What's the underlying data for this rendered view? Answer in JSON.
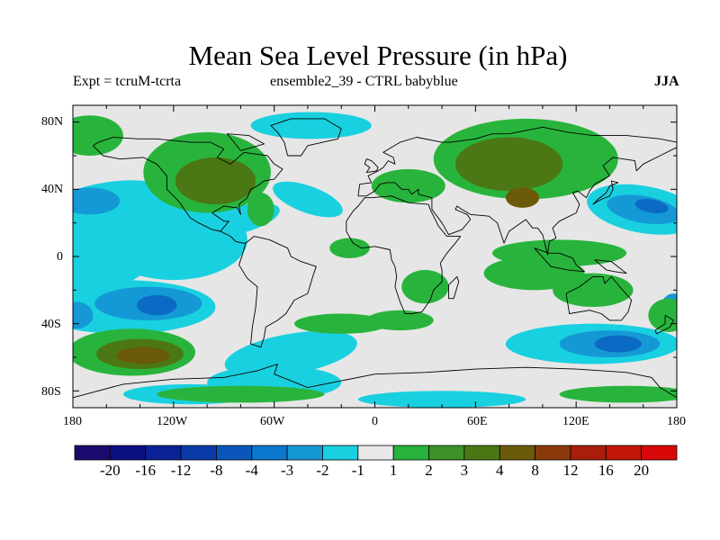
{
  "header": {
    "title": "Mean Sea Level Pressure (in hPa)",
    "experiment": "Expt = tcruM-tcrta",
    "ensemble": "ensemble2_39 - CTRL babyblue",
    "season": "JJA"
  },
  "axes": {
    "lat_labels": [
      "80N",
      "40N",
      "0",
      "40S",
      "80S"
    ],
    "lon_labels": [
      "180",
      "120W",
      "60W",
      "0",
      "60E",
      "120E",
      "180"
    ]
  },
  "colorbar": {
    "labels": [
      "-20",
      "-16",
      "-12",
      "-8",
      "-4",
      "-3",
      "-2",
      "-1",
      "1",
      "2",
      "3",
      "4",
      "8",
      "12",
      "16",
      "20"
    ],
    "colors": [
      "#1a0a6e",
      "#0c0f80",
      "#0a2296",
      "#0a3aa8",
      "#0a56bb",
      "#0a78cc",
      "#1499d6",
      "#19d0e0",
      "#e8e8e8",
      "#28b43c",
      "#3c9128",
      "#4b7814",
      "#6a5a0a",
      "#8a3a0a",
      "#a81e0a",
      "#c2160a",
      "#d80808"
    ]
  },
  "map": {
    "colors": {
      "neutral": "#e6e6e6",
      "neg_weak": "#19d0e0",
      "neg_mid": "#1499d6",
      "neg_strong": "#0a6ac4",
      "pos_weak": "#28b43c",
      "pos_mid": "#4b7814",
      "pos_strong": "#6a5a0a",
      "coast": "#000000"
    }
  }
}
